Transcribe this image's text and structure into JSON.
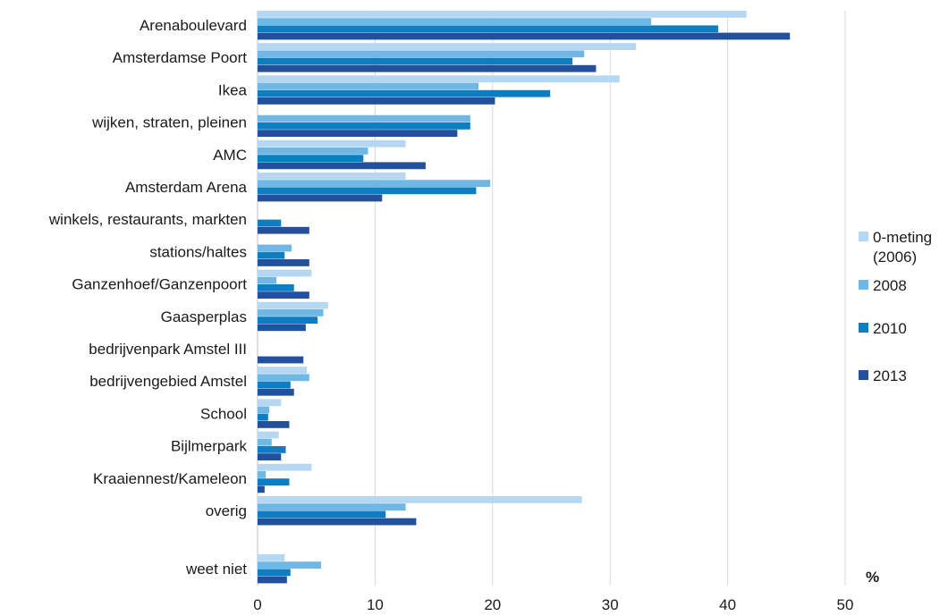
{
  "chart_data": {
    "type": "bar",
    "orientation": "horizontal",
    "categories": [
      "Arenaboulevard",
      "Amsterdamse Poort",
      "Ikea",
      "wijken, straten, pleinen",
      "AMC",
      "Amsterdam Arena",
      "winkels, restaurants, markten",
      "stations/haltes",
      "Ganzenhoef/Ganzenpoort",
      "Gaasperplas",
      "bedrijvenpark Amstel III",
      "bedrijvengebied Amstel",
      "School",
      "Bijlmerpark",
      "Kraaiennest/Kameleon",
      "overig",
      "weet niet"
    ],
    "series": [
      {
        "name": "0-meting (2006)",
        "color": "#b5d7f1",
        "values": [
          41.6,
          32.2,
          30.8,
          null,
          12.6,
          12.6,
          null,
          null,
          4.6,
          6.0,
          null,
          4.2,
          2.0,
          1.8,
          4.6,
          27.6,
          2.3
        ]
      },
      {
        "name": "2008",
        "color": "#6fb8e6",
        "values": [
          33.5,
          27.8,
          18.8,
          18.1,
          9.4,
          19.8,
          null,
          2.9,
          1.6,
          5.6,
          null,
          4.4,
          1.0,
          1.2,
          0.7,
          12.6,
          5.4
        ]
      },
      {
        "name": "2010",
        "color": "#0e7dc2",
        "values": [
          39.2,
          26.8,
          24.9,
          18.1,
          9.0,
          18.6,
          2.0,
          2.3,
          3.1,
          5.1,
          null,
          2.8,
          0.9,
          2.4,
          2.7,
          10.9,
          2.8
        ]
      },
      {
        "name": "2013",
        "color": "#23509c",
        "values": [
          45.3,
          28.8,
          20.2,
          17.0,
          14.3,
          10.6,
          4.4,
          4.4,
          4.4,
          4.1,
          3.9,
          3.1,
          2.7,
          2.0,
          0.6,
          13.5,
          2.5
        ]
      }
    ],
    "xlim": [
      0,
      50
    ],
    "xticks": [
      0,
      10,
      20,
      30,
      40,
      50
    ],
    "unit": "%",
    "legend": {
      "placement": "right",
      "entries": [
        {
          "label_lines": [
            "0-meting",
            "(2006)"
          ],
          "color": "#b5d7f1"
        },
        {
          "label_lines": [
            "2008"
          ],
          "color": "#6fb8e6"
        },
        {
          "label_lines": [
            "2010"
          ],
          "color": "#0e7dc2"
        },
        {
          "label_lines": [
            "2013"
          ],
          "color": "#23509c"
        }
      ]
    },
    "grid": true
  }
}
